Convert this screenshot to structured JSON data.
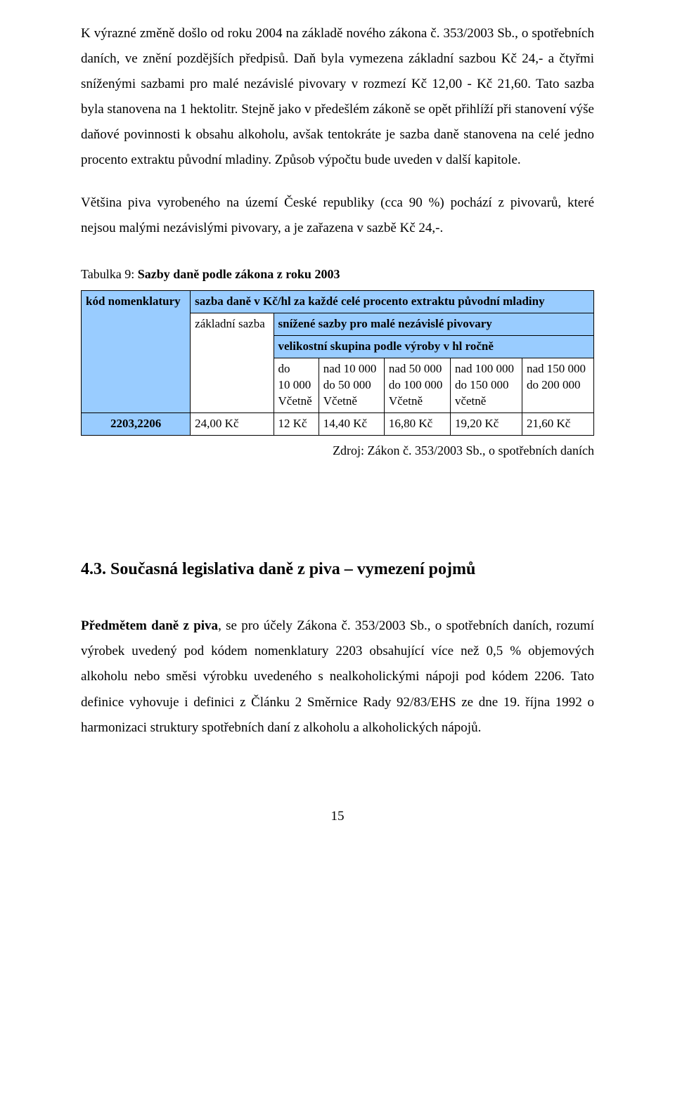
{
  "para1": "K výrazné změně došlo od roku 2004 na základě nového zákona č. 353/2003 Sb., o spotřebních daních, ve znění pozdějších předpisů. Daň byla vymezena základní sazbou Kč 24,- a čtyřmi sníženými sazbami pro malé nezávislé pivovary v rozmezí Kč 12,00 - Kč 21,60. Tato sazba byla stanovena na 1 hektolitr. Stejně jako v předešlém zákoně se opět přihlíží při stanovení výše daňové povinnosti k obsahu alkoholu, avšak tentokráte je sazba daně stanovena na celé jedno procento extraktu původní mladiny. Způsob výpočtu bude uveden v další kapitole.",
  "para2": "Většina piva vyrobeného na území České republiky (cca 90 %) pochází z pivovarů, které nejsou malými nezávislými pivovary, a je zařazena v sazbě Kč 24,-.",
  "table_caption_prefix": "Tabulka 9: ",
  "table_caption_bold": "Sazby daně podle zákona z roku 2003",
  "table": {
    "col0_header": "kód nomenklatury",
    "top_header": "sazba daně v Kč/hl za každé celé procento extraktu původní mladiny",
    "basic_rate_header": "základní sazba",
    "reduced_header": "snížené sazby pro malé nezávislé pivovary",
    "size_group_header": "velikostní skupina podle výroby v hl ročně",
    "groups": [
      {
        "l1": "do",
        "l2": "10 000",
        "l3": "Včetně"
      },
      {
        "l1": "nad 10 000",
        "l2": "do 50 000",
        "l3": "Včetně"
      },
      {
        "l1": "nad 50 000",
        "l2": "do 100 000",
        "l3": "Včetně"
      },
      {
        "l1": "nad 100 000",
        "l2": "do 150 000",
        "l3": "včetně"
      },
      {
        "l1": "nad 150 000",
        "l2": "do 200 000",
        "l3": ""
      }
    ],
    "row": {
      "code": "2203,2206",
      "basic": "24,00 Kč",
      "v": [
        "12 Kč",
        "14,40 Kč",
        "16,80 Kč",
        "19,20 Kč",
        "21,60 Kč"
      ]
    }
  },
  "source": "Zdroj: Zákon č. 353/2003 Sb., o spotřebních daních",
  "section_heading": "4.3. Současná legislativa daně z piva – vymezení pojmů",
  "para3_bold": "Předmětem daně z piva",
  "para3_rest": ", se pro účely Zákona č. 353/2003 Sb., o spotřebních daních, rozumí výrobek uvedený pod kódem nomenklatury 2203 obsahující více než 0,5 % objemových alkoholu nebo směsi výrobku uvedeného s nealkoholickými nápoji pod kódem 2206. Tato definice vyhovuje i definici z Článku 2 Směrnice Rady 92/83/EHS ze dne 19. října 1992 o harmonizaci struktury spotřebních daní z alkoholu a alkoholických nápojů.",
  "page_number": "15"
}
